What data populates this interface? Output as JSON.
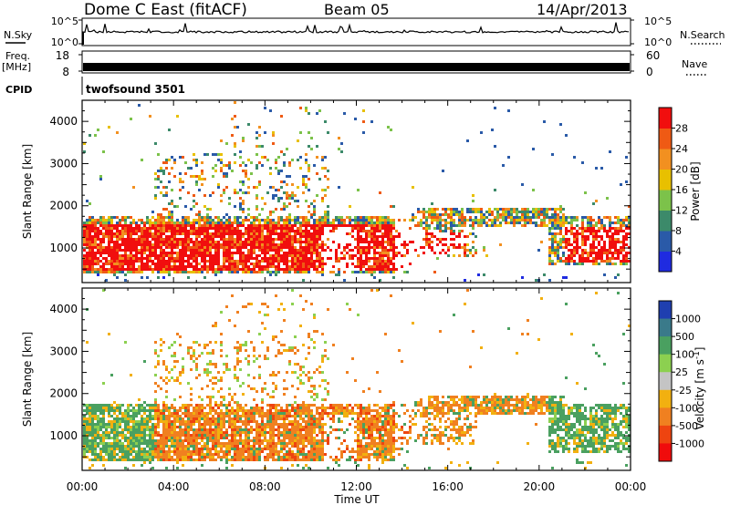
{
  "header": {
    "title": "Dome C East (fitACF)",
    "beam": "Beam 05",
    "date": "14/Apr/2013"
  },
  "status_panels": {
    "nsky_label": "N.Sky",
    "nsky_ticks": [
      "10^5",
      "10^0"
    ],
    "nsearch_label": "N.Search",
    "nsearch_ticks": [
      "10^5",
      "10^0"
    ],
    "freq_label_line1": "Freq.",
    "freq_label_line2": "[MHz]",
    "freq_ticks": [
      "18",
      "8"
    ],
    "nave_label": "Nave",
    "nave_ticks": [
      "60",
      "0"
    ],
    "cpid_label": "CPID",
    "cpid_text": "twofsound 3501"
  },
  "chart_data": [
    {
      "type": "heatmap",
      "name": "power",
      "ylabel": "Slant Range [km]",
      "yticks": [
        1000,
        2000,
        3000,
        4000
      ],
      "ylim": [
        180,
        4500
      ],
      "colorbar": {
        "label": "Power [dB]",
        "ticks": [
          "4",
          "8",
          "12",
          "16",
          "20",
          "24",
          "28"
        ],
        "colors": [
          "#1f2be0",
          "#2a5aa8",
          "#3c8a6a",
          "#7cc24a",
          "#e8c000",
          "#f29020",
          "#ef5a14",
          "#f10e0e"
        ]
      }
    },
    {
      "type": "heatmap",
      "name": "velocity",
      "ylabel": "Slant Range [km]",
      "yticks": [
        1000,
        2000,
        3000,
        4000
      ],
      "ylim": [
        180,
        4500
      ],
      "colorbar": {
        "label": "Velocity [m s-1]",
        "ticks": [
          "1000",
          "500",
          "100",
          "25",
          "-25",
          "-100",
          "-500",
          "-1000"
        ],
        "colors": [
          "#1f3fb0",
          "#3a7a8a",
          "#4aa060",
          "#8cd050",
          "#c4c4c4",
          "#f2b010",
          "#f08020",
          "#ee4410",
          "#f00c0c"
        ]
      }
    }
  ],
  "xaxis": {
    "label": "Time UT",
    "ticks": [
      "00:00",
      "04:00",
      "08:00",
      "12:00",
      "16:00",
      "20:00",
      "00:00"
    ]
  },
  "colors": {
    "axis": "#000000",
    "background": "#ffffff"
  }
}
